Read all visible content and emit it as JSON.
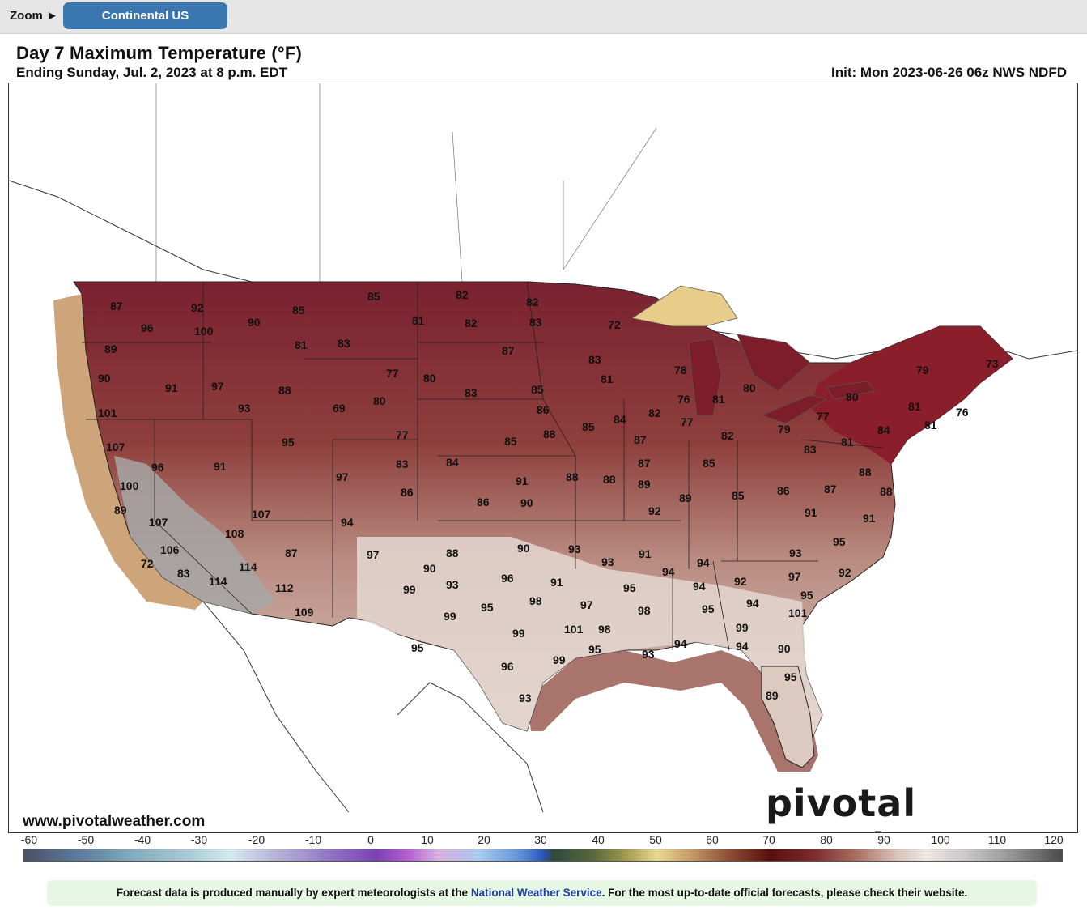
{
  "toolbar": {
    "zoom_label": "Zoom ►",
    "region_button": "Continental US"
  },
  "header": {
    "title": "Day 7 Maximum Temperature (°F)",
    "subtitle": "Ending Sunday, Jul. 2, 2023 at 8 p.m. EDT",
    "init": "Init: Mon 2023-06-26 06z NWS NDFD"
  },
  "map": {
    "site_url": "www.pivotalweather.com",
    "brand": "pivotal weather",
    "colors": {
      "hot_maroon": "#7a2130",
      "warm_brown": "#9a5c52",
      "mild_tan": "#c8a89c",
      "very_hot_grey": "#a6a6a6",
      "coast_tan": "#c99a6c",
      "lake_superior": "#e8cc8a"
    },
    "labels": [
      {
        "text": "87"
      },
      {
        "text": "92"
      },
      {
        "text": "96"
      },
      {
        "text": "100"
      },
      {
        "text": "90"
      },
      {
        "text": "85"
      },
      {
        "text": "85"
      },
      {
        "text": "82"
      },
      {
        "text": "82"
      },
      {
        "text": "81"
      },
      {
        "text": "82"
      },
      {
        "text": "83"
      },
      {
        "text": "89"
      },
      {
        "text": "81"
      },
      {
        "text": "83"
      },
      {
        "text": "87"
      },
      {
        "text": "72"
      },
      {
        "text": "90"
      },
      {
        "text": "91"
      },
      {
        "text": "97"
      },
      {
        "text": "88"
      },
      {
        "text": "77"
      },
      {
        "text": "80"
      },
      {
        "text": "83"
      },
      {
        "text": "81"
      },
      {
        "text": "78"
      },
      {
        "text": "79"
      },
      {
        "text": "73"
      },
      {
        "text": "69"
      },
      {
        "text": "101"
      },
      {
        "text": "93"
      },
      {
        "text": "80"
      },
      {
        "text": "83"
      },
      {
        "text": "85"
      },
      {
        "text": "76"
      },
      {
        "text": "81"
      },
      {
        "text": "80"
      },
      {
        "text": "80"
      },
      {
        "text": "84"
      },
      {
        "text": "82"
      },
      {
        "text": "77"
      },
      {
        "text": "86"
      },
      {
        "text": "79"
      },
      {
        "text": "77"
      },
      {
        "text": "81"
      },
      {
        "text": "76"
      },
      {
        "text": "107"
      },
      {
        "text": "95"
      },
      {
        "text": "77"
      },
      {
        "text": "88"
      },
      {
        "text": "85"
      },
      {
        "text": "87"
      },
      {
        "text": "82"
      },
      {
        "text": "83"
      },
      {
        "text": "81"
      },
      {
        "text": "84"
      },
      {
        "text": "81"
      },
      {
        "text": "96"
      },
      {
        "text": "91"
      },
      {
        "text": "83"
      },
      {
        "text": "84"
      },
      {
        "text": "87"
      },
      {
        "text": "85"
      },
      {
        "text": "85"
      },
      {
        "text": "100"
      },
      {
        "text": "97"
      },
      {
        "text": "91"
      },
      {
        "text": "88"
      },
      {
        "text": "88"
      },
      {
        "text": "88"
      },
      {
        "text": "86"
      },
      {
        "text": "87"
      },
      {
        "text": "88"
      },
      {
        "text": "89"
      },
      {
        "text": "86"
      },
      {
        "text": "90"
      },
      {
        "text": "92"
      },
      {
        "text": "89"
      },
      {
        "text": "85"
      },
      {
        "text": "91"
      },
      {
        "text": "86"
      },
      {
        "text": "107"
      },
      {
        "text": "94"
      },
      {
        "text": "91"
      },
      {
        "text": "89"
      },
      {
        "text": "107"
      },
      {
        "text": "108"
      },
      {
        "text": "95"
      },
      {
        "text": "88"
      },
      {
        "text": "106"
      },
      {
        "text": "87"
      },
      {
        "text": "97"
      },
      {
        "text": "90"
      },
      {
        "text": "93"
      },
      {
        "text": "93"
      },
      {
        "text": "72"
      },
      {
        "text": "114"
      },
      {
        "text": "90"
      },
      {
        "text": "94"
      },
      {
        "text": "93"
      },
      {
        "text": "91"
      },
      {
        "text": "94"
      },
      {
        "text": "97"
      },
      {
        "text": "92"
      },
      {
        "text": "83"
      },
      {
        "text": "114"
      },
      {
        "text": "112"
      },
      {
        "text": "99"
      },
      {
        "text": "93"
      },
      {
        "text": "96"
      },
      {
        "text": "91"
      },
      {
        "text": "95"
      },
      {
        "text": "94"
      },
      {
        "text": "92"
      },
      {
        "text": "95"
      },
      {
        "text": "109"
      },
      {
        "text": "99"
      },
      {
        "text": "95"
      },
      {
        "text": "98"
      },
      {
        "text": "97"
      },
      {
        "text": "98"
      },
      {
        "text": "95"
      },
      {
        "text": "94"
      },
      {
        "text": "101"
      },
      {
        "text": "99"
      },
      {
        "text": "101"
      },
      {
        "text": "98"
      },
      {
        "text": "95"
      },
      {
        "text": "93"
      },
      {
        "text": "94"
      },
      {
        "text": "95"
      },
      {
        "text": "94"
      },
      {
        "text": "99"
      },
      {
        "text": "99"
      },
      {
        "text": "96"
      },
      {
        "text": "90"
      },
      {
        "text": "95"
      },
      {
        "text": "93"
      },
      {
        "text": "89"
      }
    ]
  },
  "colorbar": {
    "tick_labels": [
      "-60",
      "-50",
      "-40",
      "-30",
      "-20",
      "-10",
      "0",
      "10",
      "20",
      "30",
      "40",
      "50",
      "60",
      "70",
      "80",
      "90",
      "100",
      "110",
      "120"
    ]
  },
  "footer": {
    "note_before": "Forecast data is produced manually by expert meteorologists at the ",
    "note_link": "National Weather Service",
    "note_after": ". For the most up-to-date official forecasts, please check their website."
  }
}
